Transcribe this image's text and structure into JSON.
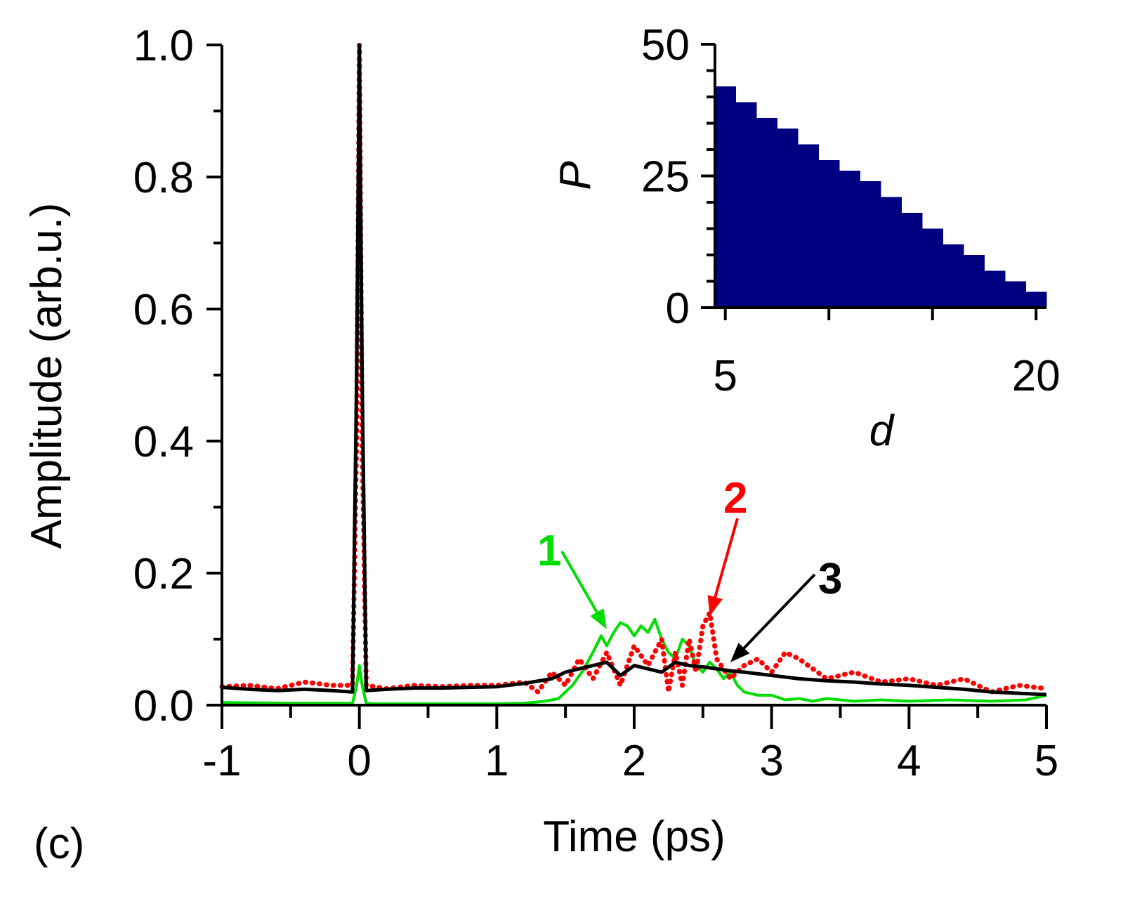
{
  "panel_label": "(c)",
  "chart_data": [
    {
      "type": "line",
      "title": "",
      "xlabel": "Time (ps)",
      "ylabel": "Amplitude (arb.u.)",
      "xlim": [
        -1,
        5
      ],
      "ylim": [
        0,
        1.0
      ],
      "xticks": [
        -1,
        0,
        1,
        2,
        3,
        4,
        5
      ],
      "xtick_labels": [
        "-1",
        "0",
        "1",
        "2",
        "3",
        "4",
        "5"
      ],
      "yticks": [
        0.0,
        0.2,
        0.4,
        0.6,
        0.8,
        1.0
      ],
      "ytick_labels": [
        "0.0",
        "0.2",
        "0.4",
        "0.6",
        "0.8",
        "1.0"
      ],
      "series": [
        {
          "name": "1",
          "label": "1",
          "color": "#00dd00",
          "style": "solid",
          "x": [
            -1.0,
            -0.5,
            -0.05,
            -0.02,
            0.0,
            0.02,
            0.05,
            0.1,
            0.5,
            1.0,
            1.2,
            1.35,
            1.45,
            1.55,
            1.62,
            1.7,
            1.76,
            1.8,
            1.85,
            1.9,
            1.95,
            2.0,
            2.05,
            2.1,
            2.15,
            2.2,
            2.25,
            2.3,
            2.35,
            2.4,
            2.45,
            2.5,
            2.55,
            2.6,
            2.65,
            2.7,
            2.75,
            2.8,
            2.9,
            3.0,
            3.1,
            3.2,
            3.3,
            3.4,
            3.6,
            3.8,
            4.0,
            4.3,
            4.6,
            4.85,
            5.0
          ],
          "y": [
            0.004,
            0.003,
            0.003,
            0.03,
            0.06,
            0.03,
            0.003,
            0.002,
            0.002,
            0.002,
            0.003,
            0.006,
            0.01,
            0.03,
            0.05,
            0.08,
            0.105,
            0.09,
            0.11,
            0.125,
            0.12,
            0.105,
            0.12,
            0.11,
            0.13,
            0.1,
            0.08,
            0.07,
            0.1,
            0.09,
            0.06,
            0.05,
            0.065,
            0.055,
            0.04,
            0.05,
            0.03,
            0.02,
            0.015,
            0.015,
            0.008,
            0.01,
            0.006,
            0.01,
            0.006,
            0.008,
            0.006,
            0.008,
            0.006,
            0.008,
            0.015
          ]
        },
        {
          "name": "2",
          "label": "2",
          "color": "#ff0000",
          "style": "dotted",
          "x": [
            -1.0,
            -0.8,
            -0.6,
            -0.4,
            -0.2,
            -0.05,
            -0.02,
            0.0,
            0.02,
            0.05,
            0.2,
            0.4,
            0.6,
            0.8,
            1.0,
            1.2,
            1.3,
            1.4,
            1.5,
            1.6,
            1.7,
            1.8,
            1.9,
            2.0,
            2.1,
            2.2,
            2.25,
            2.3,
            2.35,
            2.4,
            2.45,
            2.5,
            2.55,
            2.6,
            2.7,
            2.8,
            2.9,
            3.0,
            3.1,
            3.2,
            3.4,
            3.6,
            3.8,
            4.0,
            4.2,
            4.4,
            4.6,
            4.8,
            5.0
          ],
          "y": [
            0.028,
            0.03,
            0.025,
            0.035,
            0.03,
            0.03,
            0.4,
            1.0,
            0.4,
            0.03,
            0.025,
            0.03,
            0.028,
            0.03,
            0.03,
            0.035,
            0.02,
            0.05,
            0.03,
            0.07,
            0.04,
            0.08,
            0.03,
            0.09,
            0.06,
            0.1,
            0.02,
            0.08,
            0.03,
            0.1,
            0.05,
            0.12,
            0.14,
            0.07,
            0.04,
            0.06,
            0.07,
            0.05,
            0.08,
            0.07,
            0.04,
            0.05,
            0.035,
            0.04,
            0.03,
            0.04,
            0.02,
            0.03,
            0.025
          ]
        },
        {
          "name": "3",
          "label": "3",
          "color": "#000000",
          "style": "solid",
          "x": [
            -1.0,
            -0.8,
            -0.6,
            -0.4,
            -0.2,
            -0.05,
            -0.02,
            0.0,
            0.02,
            0.05,
            0.2,
            0.4,
            0.6,
            0.8,
            1.0,
            1.2,
            1.4,
            1.5,
            1.6,
            1.7,
            1.8,
            1.9,
            2.0,
            2.1,
            2.2,
            2.3,
            2.4,
            2.5,
            2.6,
            2.7,
            2.8,
            3.0,
            3.2,
            3.4,
            3.6,
            3.8,
            4.0,
            4.2,
            4.4,
            4.6,
            4.8,
            5.0
          ],
          "y": [
            0.027,
            0.024,
            0.022,
            0.024,
            0.022,
            0.02,
            0.5,
            1.0,
            0.5,
            0.022,
            0.024,
            0.026,
            0.026,
            0.027,
            0.028,
            0.033,
            0.04,
            0.05,
            0.055,
            0.06,
            0.065,
            0.045,
            0.06,
            0.055,
            0.05,
            0.065,
            0.06,
            0.058,
            0.055,
            0.052,
            0.05,
            0.045,
            0.04,
            0.037,
            0.035,
            0.032,
            0.03,
            0.027,
            0.024,
            0.02,
            0.018,
            0.016
          ]
        }
      ],
      "annotations": [
        {
          "text": "1",
          "color": "#00dd00",
          "bold": true,
          "arrow_to": [
            1.8,
            0.115
          ]
        },
        {
          "text": "2",
          "color": "#ff0000",
          "bold": true,
          "arrow_to": [
            2.55,
            0.135
          ]
        },
        {
          "text": "3",
          "color": "#000000",
          "bold": true,
          "arrow_to": [
            2.7,
            0.065
          ]
        }
      ]
    },
    {
      "type": "bar",
      "subtype": "histogram-step",
      "title": "",
      "xlabel": "d",
      "ylabel": "P",
      "xlim": [
        4.5,
        20.5
      ],
      "ylim": [
        0,
        50
      ],
      "xticks": [
        5,
        20
      ],
      "xtick_labels": [
        "5",
        "20"
      ],
      "yticks": [
        0,
        25,
        50
      ],
      "ytick_labels": [
        "0",
        "25",
        "50"
      ],
      "color": "#000080",
      "categories": [
        5,
        6,
        7,
        8,
        9,
        10,
        11,
        12,
        13,
        14,
        15,
        16,
        17,
        18,
        19,
        20
      ],
      "values": [
        42,
        39,
        36,
        34,
        31,
        28,
        26,
        24,
        21,
        18,
        15,
        12,
        10,
        7,
        5,
        3
      ]
    }
  ]
}
